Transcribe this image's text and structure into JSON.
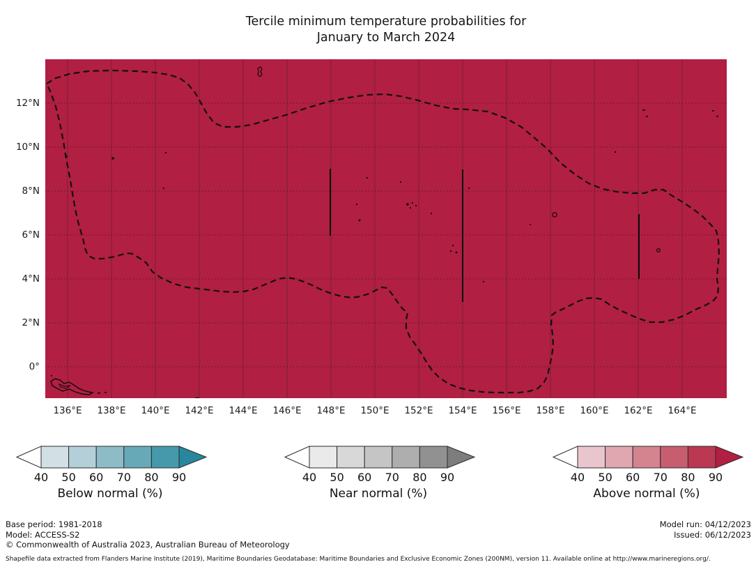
{
  "title": {
    "line1": "Tercile minimum temperature probabilities for",
    "line2": "January to March 2024"
  },
  "map": {
    "fill_color": "#b11f42",
    "boundary_style": "dashed EEZ maritime boundary",
    "x_ticks": [
      "136°E",
      "138°E",
      "140°E",
      "142°E",
      "144°E",
      "146°E",
      "148°E",
      "150°E",
      "152°E",
      "154°E",
      "156°E",
      "158°E",
      "160°E",
      "162°E",
      "164°E"
    ],
    "y_ticks": [
      "12°N",
      "10°N",
      "8°N",
      "6°N",
      "4°N",
      "2°N",
      "0°"
    ]
  },
  "chart_data": {
    "type": "map",
    "title": "Tercile minimum temperature probabilities for January to March 2024",
    "x_range_deg_east": [
      135,
      166
    ],
    "y_range_deg_north": [
      -1.4,
      14
    ],
    "region_fill": "uniform Above normal > 90%",
    "fill_color": "#b11f42"
  },
  "colorbars": [
    {
      "label": "Below normal (%)",
      "ticks": [
        "40",
        "50",
        "60",
        "70",
        "80",
        "90"
      ],
      "segments": [
        "#d2e0e5",
        "#b4cfd7",
        "#8dbcc7",
        "#68a9b8",
        "#4599ab"
      ],
      "left_arrow": "#ffffff",
      "right_arrow": "#27879d",
      "outline": "#2b2b2b"
    },
    {
      "label": "Near normal (%)",
      "ticks": [
        "40",
        "50",
        "60",
        "70",
        "80",
        "90"
      ],
      "segments": [
        "#eaeaea",
        "#d8d8d8",
        "#c5c5c5",
        "#aeaeae",
        "#919191"
      ],
      "left_arrow": "#ffffff",
      "right_arrow": "#7d7d7d",
      "outline": "#2b2b2b"
    },
    {
      "label": "Above normal (%)",
      "ticks": [
        "40",
        "50",
        "60",
        "70",
        "80",
        "90"
      ],
      "segments": [
        "#e9c5cd",
        "#e0a7b1",
        "#d4848f",
        "#c65e6f",
        "#ba3851"
      ],
      "left_arrow": "#ffffff",
      "right_arrow": "#b11f42",
      "outline": "#2b2b2b"
    }
  ],
  "footer": {
    "base_period": "Base period: 1981-2018",
    "model": "Model: ACCESS-S2",
    "copyright": "© Commonwealth of Australia 2023, Australian Bureau of Meteorology",
    "model_run": "Model run: 04/12/2023",
    "issued": "Issued: 06/12/2023",
    "shapefile_note": "Shapefile data extracted from Flanders Marine Institute (2019), Maritime Boundaries Geodatabase: Maritime Boundaries and Exclusive Economic Zones (200NM), version 11. Available online at http://www.marineregions.org/."
  }
}
